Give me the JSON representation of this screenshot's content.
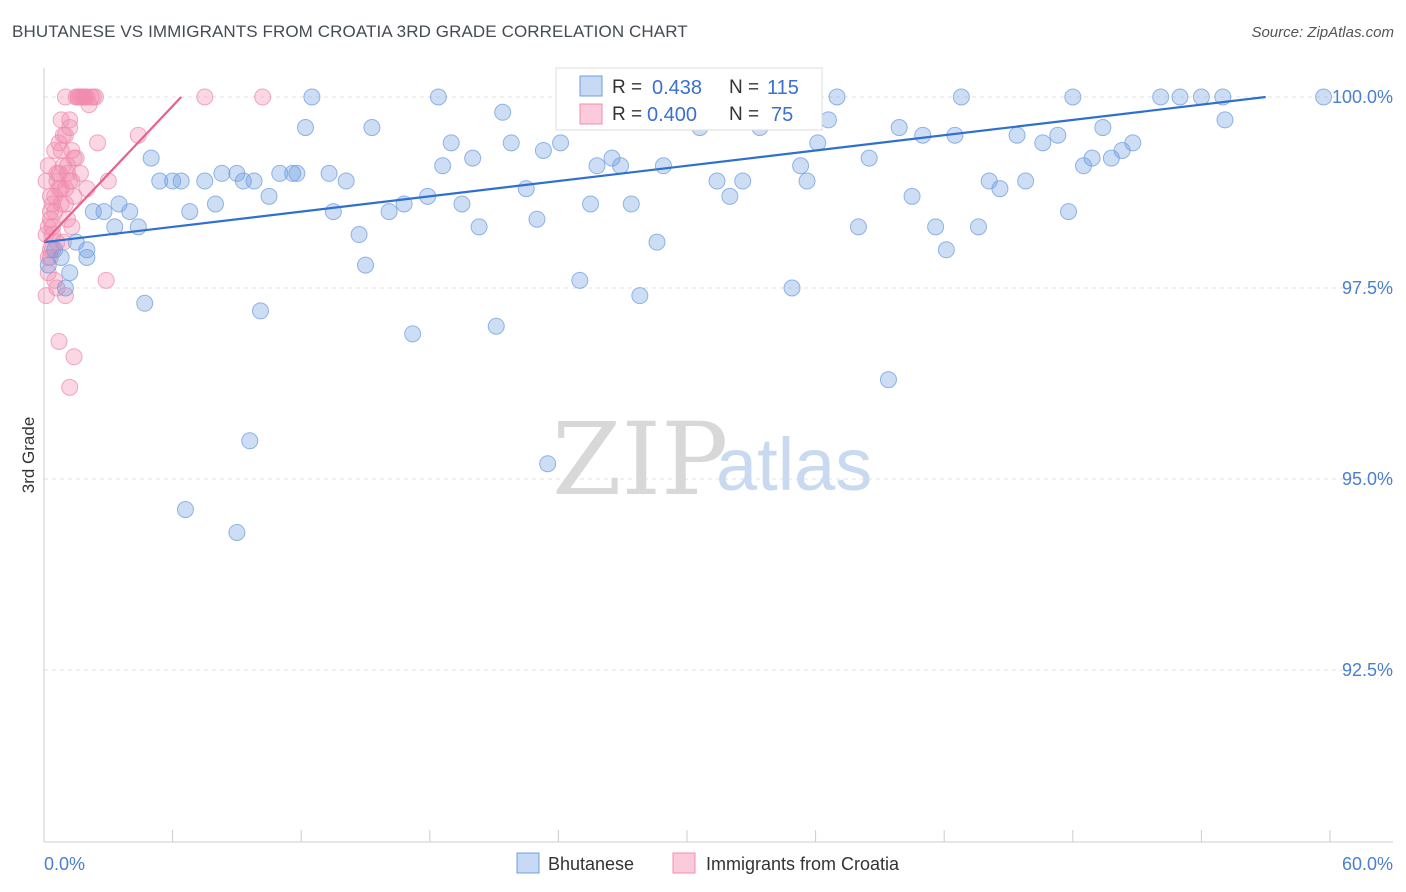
{
  "title": "BHUTANESE VS IMMIGRANTS FROM CROATIA 3RD GRADE CORRELATION CHART",
  "source": "Source: ZipAtlas.com",
  "watermark": {
    "zip": "ZIP",
    "atlas": "atlas"
  },
  "colors": {
    "blue": "#6f9fe0",
    "blue_line": "#2f6fd0",
    "pink": "#f08cb0",
    "pink_line": "#e8608c",
    "grid": "#e2e2e2",
    "axis": "#cccccc"
  },
  "stats": {
    "r_label": "R =",
    "n_label": "N =",
    "blue": {
      "r": "0.438",
      "n": "115"
    },
    "pink": {
      "r": "0.400",
      "n": "75"
    }
  },
  "chart_data": {
    "type": "scatter",
    "title": "BHUTANESE VS IMMIGRANTS FROM CROATIA 3RD GRADE CORRELATION CHART",
    "xlabel": "",
    "ylabel": "3rd Grade",
    "xlim": [
      0,
      60
    ],
    "ylim": [
      90.0,
      100.5
    ],
    "x_tick_labels": [
      "0.0%",
      "60.0%"
    ],
    "y_ticks": [
      92.5,
      95.0,
      97.5,
      100.0
    ],
    "y_tick_labels": [
      "92.5%",
      "95.0%",
      "97.5%",
      "100.0%"
    ],
    "legend": [
      "Bhutanese",
      "Immigrants from Croatia"
    ],
    "series": [
      {
        "name": "Bhutanese",
        "trend": {
          "x": [
            0,
            57
          ],
          "y": [
            98.1,
            100.0
          ]
        },
        "points": [
          [
            0.2,
            97.8
          ],
          [
            0.5,
            98.0
          ],
          [
            0.8,
            97.9
          ],
          [
            1.0,
            97.5
          ],
          [
            1.2,
            97.7
          ],
          [
            1.5,
            98.1
          ],
          [
            2.0,
            98.0
          ],
          [
            2.3,
            98.5
          ],
          [
            2.8,
            98.5
          ],
          [
            3.3,
            98.3
          ],
          [
            3.5,
            98.6
          ],
          [
            4.0,
            98.5
          ],
          [
            4.4,
            98.3
          ],
          [
            4.7,
            97.3
          ],
          [
            5.0,
            99.2
          ],
          [
            5.4,
            98.9
          ],
          [
            6.0,
            98.9
          ],
          [
            6.4,
            98.9
          ],
          [
            6.8,
            98.5
          ],
          [
            7.5,
            98.9
          ],
          [
            8.0,
            98.6
          ],
          [
            8.3,
            99.0
          ],
          [
            9.0,
            99.0
          ],
          [
            9.3,
            98.9
          ],
          [
            9.8,
            98.9
          ],
          [
            10.1,
            97.2
          ],
          [
            10.5,
            98.7
          ],
          [
            11.0,
            99.0
          ],
          [
            11.6,
            99.0
          ],
          [
            11.8,
            99.0
          ],
          [
            12.2,
            99.6
          ],
          [
            12.5,
            100.0
          ],
          [
            13.3,
            99.0
          ],
          [
            13.5,
            98.5
          ],
          [
            14.1,
            98.9
          ],
          [
            14.7,
            98.2
          ],
          [
            15.0,
            97.8
          ],
          [
            15.3,
            99.6
          ],
          [
            16.1,
            98.5
          ],
          [
            16.8,
            98.6
          ],
          [
            17.2,
            96.9
          ],
          [
            17.9,
            98.7
          ],
          [
            18.4,
            100.0
          ],
          [
            18.6,
            99.1
          ],
          [
            19.0,
            99.4
          ],
          [
            19.5,
            98.6
          ],
          [
            20.0,
            99.2
          ],
          [
            20.3,
            98.3
          ],
          [
            21.1,
            97.0
          ],
          [
            21.4,
            99.8
          ],
          [
            21.8,
            99.4
          ],
          [
            22.5,
            98.8
          ],
          [
            23.0,
            98.4
          ],
          [
            23.3,
            99.3
          ],
          [
            24.1,
            99.4
          ],
          [
            24.7,
            99.7
          ],
          [
            25.0,
            97.6
          ],
          [
            25.5,
            98.6
          ],
          [
            25.8,
            99.1
          ],
          [
            26.5,
            99.2
          ],
          [
            26.9,
            99.1
          ],
          [
            27.4,
            98.6
          ],
          [
            27.8,
            97.4
          ],
          [
            28.6,
            98.1
          ],
          [
            28.9,
            99.1
          ],
          [
            29.8,
            99.8
          ],
          [
            30.2,
            99.9
          ],
          [
            30.6,
            99.6
          ],
          [
            31.4,
            98.9
          ],
          [
            32.0,
            98.7
          ],
          [
            32.6,
            98.9
          ],
          [
            33.4,
            99.6
          ],
          [
            34.0,
            99.8
          ],
          [
            34.9,
            97.5
          ],
          [
            35.3,
            99.1
          ],
          [
            35.6,
            98.9
          ],
          [
            36.1,
            99.4
          ],
          [
            36.6,
            99.7
          ],
          [
            37.0,
            100.0
          ],
          [
            38.0,
            98.3
          ],
          [
            38.5,
            99.2
          ],
          [
            39.4,
            96.3
          ],
          [
            39.9,
            99.6
          ],
          [
            40.5,
            98.7
          ],
          [
            41.0,
            99.5
          ],
          [
            41.6,
            98.3
          ],
          [
            42.1,
            98.0
          ],
          [
            42.5,
            99.5
          ],
          [
            42.8,
            100.0
          ],
          [
            43.6,
            98.3
          ],
          [
            44.1,
            98.9
          ],
          [
            44.6,
            98.8
          ],
          [
            45.4,
            99.5
          ],
          [
            45.8,
            98.9
          ],
          [
            46.6,
            99.4
          ],
          [
            47.3,
            99.5
          ],
          [
            47.8,
            98.5
          ],
          [
            48.0,
            100.0
          ],
          [
            48.5,
            99.1
          ],
          [
            48.9,
            99.2
          ],
          [
            49.4,
            99.6
          ],
          [
            49.8,
            99.2
          ],
          [
            50.3,
            99.3
          ],
          [
            50.8,
            99.4
          ],
          [
            55.0,
            100.0
          ],
          [
            52.1,
            100.0
          ],
          [
            53.0,
            100.0
          ],
          [
            54.0,
            100.0
          ],
          [
            55.1,
            99.7
          ],
          [
            59.7,
            100.0
          ],
          [
            9.0,
            94.3
          ],
          [
            6.6,
            94.6
          ],
          [
            9.6,
            95.5
          ],
          [
            23.5,
            95.2
          ],
          [
            2.0,
            97.9
          ]
        ]
      },
      {
        "name": "Immigrants from Croatia",
        "trend": {
          "x": [
            0,
            6.4
          ],
          "y": [
            98.1,
            100.0
          ]
        },
        "points": [
          [
            0.1,
            97.4
          ],
          [
            0.2,
            98.3
          ],
          [
            0.3,
            98.5
          ],
          [
            0.4,
            98.0
          ],
          [
            0.5,
            98.7
          ],
          [
            0.6,
            99.0
          ],
          [
            0.7,
            98.8
          ],
          [
            0.8,
            99.3
          ],
          [
            0.9,
            99.5
          ],
          [
            1.0,
            98.6
          ],
          [
            1.1,
            99.1
          ],
          [
            1.2,
            99.6
          ],
          [
            1.3,
            98.9
          ],
          [
            1.4,
            99.2
          ],
          [
            1.5,
            100.0
          ],
          [
            1.6,
            100.0
          ],
          [
            1.7,
            99.0
          ],
          [
            1.8,
            100.0
          ],
          [
            1.9,
            100.0
          ],
          [
            2.0,
            100.0
          ],
          [
            2.1,
            99.9
          ],
          [
            2.2,
            100.0
          ],
          [
            2.3,
            100.0
          ],
          [
            2.4,
            100.0
          ],
          [
            2.5,
            99.4
          ],
          [
            0.1,
            98.2
          ],
          [
            0.2,
            97.9
          ],
          [
            0.3,
            98.4
          ],
          [
            0.4,
            98.6
          ],
          [
            0.5,
            97.6
          ],
          [
            0.6,
            98.1
          ],
          [
            0.7,
            99.0
          ],
          [
            0.8,
            98.8
          ],
          [
            0.9,
            99.1
          ],
          [
            1.0,
            99.5
          ],
          [
            1.1,
            98.4
          ],
          [
            1.2,
            98.9
          ],
          [
            1.3,
            99.3
          ],
          [
            1.4,
            98.7
          ],
          [
            1.5,
            99.2
          ],
          [
            1.6,
            100.0
          ],
          [
            1.7,
            100.0
          ],
          [
            1.8,
            100.0
          ],
          [
            1.9,
            100.0
          ],
          [
            0.3,
            97.9
          ],
          [
            0.4,
            98.2
          ],
          [
            0.5,
            98.5
          ],
          [
            0.6,
            98.9
          ],
          [
            0.7,
            99.4
          ],
          [
            0.8,
            98.6
          ],
          [
            0.9,
            98.1
          ],
          [
            1.0,
            98.8
          ],
          [
            1.1,
            99.0
          ],
          [
            1.2,
            99.7
          ],
          [
            1.3,
            98.3
          ],
          [
            0.1,
            98.9
          ],
          [
            0.2,
            99.1
          ],
          [
            0.3,
            98.7
          ],
          [
            0.4,
            98.3
          ],
          [
            0.6,
            97.5
          ],
          [
            0.7,
            96.8
          ],
          [
            1.0,
            97.4
          ],
          [
            1.2,
            96.2
          ],
          [
            1.4,
            96.6
          ],
          [
            2.9,
            97.6
          ],
          [
            3.0,
            98.9
          ],
          [
            4.4,
            99.5
          ],
          [
            7.5,
            100.0
          ],
          [
            10.2,
            100.0
          ],
          [
            2.0,
            98.8
          ],
          [
            0.2,
            97.7
          ],
          [
            0.3,
            98.0
          ],
          [
            0.5,
            99.3
          ],
          [
            1.0,
            100.0
          ],
          [
            0.8,
            99.7
          ]
        ]
      }
    ]
  }
}
